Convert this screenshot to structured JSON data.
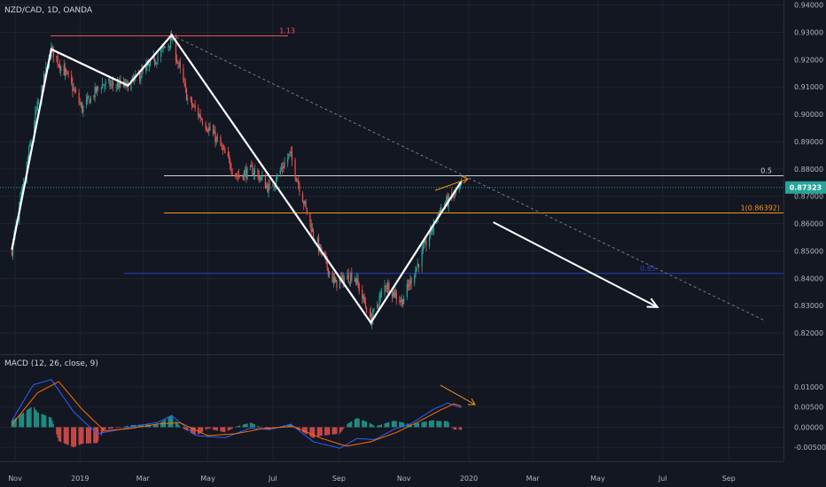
{
  "header": {
    "symbol_title": "NZD/CAD, 1D, OANDA",
    "indicator_title": "MACD (12, 26, close, 9)"
  },
  "colors": {
    "background": "#131722",
    "up": "#26a69a",
    "down": "#ef5350",
    "grid": "#1f2430",
    "macd_line": "#2962ff",
    "signal_line": "#ff6d00",
    "price_badge": "#26a69a",
    "fib_half": "#d1d4dc",
    "fib_one": "#f7931a",
    "fib_upper": "#ef5350",
    "fib_lower": "#2b3fbf",
    "pattern": "#ffffff",
    "trendline": "#787b86",
    "divergence": "#f7931a"
  },
  "chart_data": [
    {
      "type": "candlestick",
      "title": "NZD/CAD, 1D, OANDA",
      "x_axis_labels": [
        "Nov",
        "2019",
        "Mar",
        "May",
        "Jul",
        "Sep",
        "Nov",
        "2020",
        "Mar",
        "May",
        "Jul",
        "Sep"
      ],
      "y_axis_labels": [
        "0.94000",
        "0.93000",
        "0.92000",
        "0.91000",
        "0.90000",
        "0.89000",
        "0.88000",
        "0.87000",
        "0.86000",
        "0.85000",
        "0.84000",
        "0.83000",
        "0.82000"
      ],
      "ylim": [
        0.8155,
        0.9405
      ],
      "current_price": "0.87323",
      "fib_levels": [
        {
          "label": "1.13",
          "price": 0.9287
        },
        {
          "label": "0.5",
          "price": 0.8775
        },
        {
          "label": "1(0.86392)",
          "price": 0.86392
        },
        {
          "label": "0.85",
          "price": 0.8418
        }
      ],
      "swing_pattern": [
        {
          "date": "2018-10-29",
          "price": 0.8505
        },
        {
          "date": "2018-12-05",
          "price": 0.9238
        },
        {
          "date": "2019-02-15",
          "price": 0.9105
        },
        {
          "date": "2019-03-28",
          "price": 0.929
        },
        {
          "date": "2019-10-01",
          "price": 0.8238
        },
        {
          "date": "2019-12-25",
          "price": 0.8755
        }
      ],
      "projection_arrow": [
        {
          "date": "2020-01-24",
          "price": 0.8605
        },
        {
          "date": "2020-06-26",
          "price": 0.8295
        }
      ],
      "dashed_trendline": [
        {
          "date": "2019-03-28",
          "price": 0.929
        },
        {
          "date": "2020-10-05",
          "price": 0.8245
        }
      ],
      "price_path": [
        {
          "date": "2018-10-29",
          "price": 0.8505
        },
        {
          "date": "2018-11-20",
          "price": 0.8995
        },
        {
          "date": "2018-12-05",
          "price": 0.9238
        },
        {
          "date": "2018-12-21",
          "price": 0.913
        },
        {
          "date": "2019-01-03",
          "price": 0.902
        },
        {
          "date": "2019-01-21",
          "price": 0.911
        },
        {
          "date": "2019-02-15",
          "price": 0.9105
        },
        {
          "date": "2019-03-07",
          "price": 0.9175
        },
        {
          "date": "2019-03-28",
          "price": 0.9275
        },
        {
          "date": "2019-04-12",
          "price": 0.9055
        },
        {
          "date": "2019-05-08",
          "price": 0.8915
        },
        {
          "date": "2019-05-28",
          "price": 0.8775
        },
        {
          "date": "2019-06-13",
          "price": 0.8795
        },
        {
          "date": "2019-06-28",
          "price": 0.8725
        },
        {
          "date": "2019-07-17",
          "price": 0.8855
        },
        {
          "date": "2019-08-08",
          "price": 0.856
        },
        {
          "date": "2019-08-28",
          "price": 0.838
        },
        {
          "date": "2019-09-15",
          "price": 0.8415
        },
        {
          "date": "2019-10-01",
          "price": 0.8248
        },
        {
          "date": "2019-10-15",
          "price": 0.838
        },
        {
          "date": "2019-10-30",
          "price": 0.8315
        },
        {
          "date": "2019-11-15",
          "price": 0.846
        },
        {
          "date": "2019-12-05",
          "price": 0.8655
        },
        {
          "date": "2019-12-25",
          "price": 0.8732
        }
      ]
    },
    {
      "type": "bar",
      "title": "MACD (12, 26, close, 9)",
      "y_axis_labels": [
        "0.01000",
        "0.00500",
        "0.00000",
        "-0.00500"
      ],
      "ylim": [
        -0.0078,
        0.0148
      ],
      "macd_path": [
        {
          "date": "2018-10-29",
          "value": 0.0016
        },
        {
          "date": "2018-11-18",
          "value": 0.0105
        },
        {
          "date": "2018-12-05",
          "value": 0.0118
        },
        {
          "date": "2018-12-26",
          "value": 0.0038
        },
        {
          "date": "2019-01-17",
          "value": -0.0016
        },
        {
          "date": "2019-02-07",
          "value": -0.0006
        },
        {
          "date": "2019-02-25",
          "value": 0.0004
        },
        {
          "date": "2019-03-15",
          "value": 0.0012
        },
        {
          "date": "2019-03-28",
          "value": 0.0029
        },
        {
          "date": "2019-04-20",
          "value": -0.0021
        },
        {
          "date": "2019-05-17",
          "value": -0.0026
        },
        {
          "date": "2019-06-10",
          "value": -0.0002
        },
        {
          "date": "2019-06-28",
          "value": -0.0006
        },
        {
          "date": "2019-07-18",
          "value": 0.0007
        },
        {
          "date": "2019-08-08",
          "value": -0.0036
        },
        {
          "date": "2019-09-02",
          "value": -0.0052
        },
        {
          "date": "2019-09-18",
          "value": -0.0028
        },
        {
          "date": "2019-10-05",
          "value": -0.0031
        },
        {
          "date": "2019-10-22",
          "value": -0.0006
        },
        {
          "date": "2019-11-08",
          "value": 0.0009
        },
        {
          "date": "2019-11-28",
          "value": 0.0043
        },
        {
          "date": "2019-12-12",
          "value": 0.006
        },
        {
          "date": "2019-12-25",
          "value": 0.0048
        }
      ],
      "signal_path": [
        {
          "date": "2018-10-29",
          "value": 0.0006
        },
        {
          "date": "2018-11-22",
          "value": 0.0085
        },
        {
          "date": "2018-12-12",
          "value": 0.0113
        },
        {
          "date": "2019-01-03",
          "value": 0.0044
        },
        {
          "date": "2019-01-24",
          "value": -0.0009
        },
        {
          "date": "2019-02-18",
          "value": -0.0003
        },
        {
          "date": "2019-03-15",
          "value": 0.0008
        },
        {
          "date": "2019-04-05",
          "value": 0.0011
        },
        {
          "date": "2019-05-01",
          "value": -0.0021
        },
        {
          "date": "2019-05-28",
          "value": -0.0016
        },
        {
          "date": "2019-06-20",
          "value": -0.0004
        },
        {
          "date": "2019-07-20",
          "value": 0.0002
        },
        {
          "date": "2019-08-15",
          "value": -0.0027
        },
        {
          "date": "2019-09-08",
          "value": -0.0047
        },
        {
          "date": "2019-10-01",
          "value": -0.0036
        },
        {
          "date": "2019-10-25",
          "value": -0.0013
        },
        {
          "date": "2019-11-15",
          "value": 0.0014
        },
        {
          "date": "2019-12-05",
          "value": 0.0042
        },
        {
          "date": "2019-12-18",
          "value": 0.0058
        },
        {
          "date": "2019-12-25",
          "value": 0.0052
        }
      ]
    }
  ]
}
